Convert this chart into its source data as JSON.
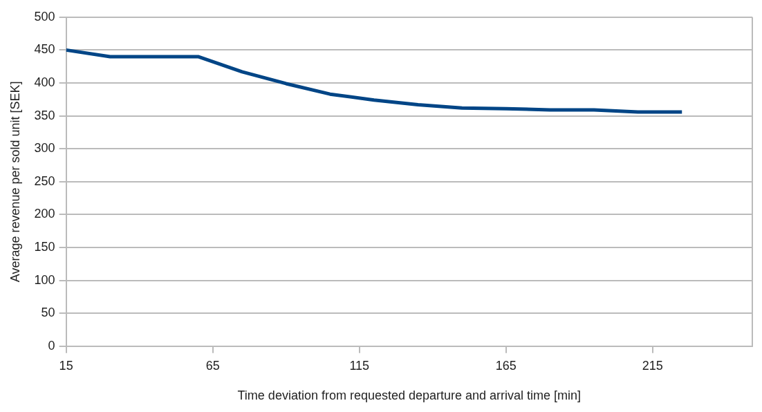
{
  "chart_data": {
    "type": "line",
    "xlabel": "Time deviation from requested departure and arrival time [min]",
    "ylabel": "Average revenue per sold unit [SEK]",
    "x": [
      15,
      30,
      45,
      60,
      75,
      90,
      105,
      120,
      135,
      150,
      165,
      180,
      195,
      210,
      225
    ],
    "series": [
      {
        "color": "#004586",
        "values": [
          450,
          440,
          440,
          440,
          417,
          399,
          383,
          374,
          367,
          362,
          361,
          359,
          359,
          356,
          356
        ]
      }
    ],
    "xlim": [
      15,
      249
    ],
    "xticks": [
      15,
      65,
      115,
      165,
      215
    ],
    "ylim": [
      0,
      500
    ],
    "yticks": [
      0,
      50,
      100,
      150,
      200,
      250,
      300,
      350,
      400,
      450,
      500
    ],
    "grid": "y",
    "legend": false,
    "marker": "none",
    "line_style": "solid"
  }
}
